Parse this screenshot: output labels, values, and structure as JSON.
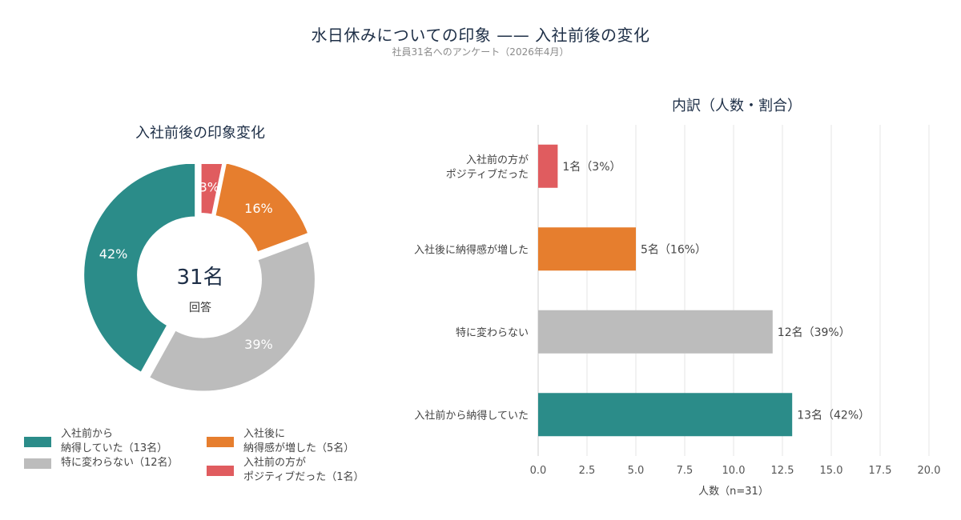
{
  "title": "水日休みについての印象 —— 入社前後の変化",
  "subtitle": "社員31名へのアンケート（2026年4月）",
  "colors": {
    "teal": "#2b8c89",
    "gray": "#bcbcbc",
    "orange": "#e67e2e",
    "red": "#e05c5f",
    "title": "#1e2f47"
  },
  "legend": [
    {
      "label": "入社前から\n納得していた（13名）",
      "color": "#2b8c89"
    },
    {
      "label": "入社後に\n納得感が増した（5名）",
      "color": "#e67e2e"
    },
    {
      "label": "特に変わらない（12名）",
      "color": "#bcbcbc"
    },
    {
      "label": "入社前の方が\nポジティブだった（1名）",
      "color": "#e05c5f"
    }
  ],
  "chart_data": [
    {
      "type": "pie",
      "title": "入社前後の印象変化",
      "center_value": "31名",
      "center_label": "回答",
      "slices": [
        {
          "label": "入社前の方がポジティブだった",
          "value": 1,
          "percent_label": "3%",
          "color": "#e05c5f"
        },
        {
          "label": "入社後に納得感が増した",
          "value": 5,
          "percent_label": "16%",
          "color": "#e67e2e"
        },
        {
          "label": "特に変わらない",
          "value": 12,
          "percent_label": "39%",
          "color": "#bcbcbc"
        },
        {
          "label": "入社前から納得していた",
          "value": 13,
          "percent_label": "42%",
          "color": "#2b8c89"
        }
      ]
    },
    {
      "type": "bar",
      "orientation": "horizontal",
      "title": "内訳（人数・割合）",
      "xlabel": "人数（n=31）",
      "xlim": [
        0,
        20
      ],
      "xticks": [
        "0.0",
        "2.5",
        "5.0",
        "7.5",
        "10.0",
        "12.5",
        "15.0",
        "17.5",
        "20.0"
      ],
      "grid": true,
      "bars": [
        {
          "label": "入社前の方が\nポジティブだった",
          "value": 1,
          "value_label": "1名（3%）",
          "color": "#e05c5f"
        },
        {
          "label": "入社後に納得感が増した",
          "value": 5,
          "value_label": "5名（16%）",
          "color": "#e67e2e"
        },
        {
          "label": "特に変わらない",
          "value": 12,
          "value_label": "12名（39%）",
          "color": "#bcbcbc"
        },
        {
          "label": "入社前から納得していた",
          "value": 13,
          "value_label": "13名（42%）",
          "color": "#2b8c89"
        }
      ]
    }
  ]
}
